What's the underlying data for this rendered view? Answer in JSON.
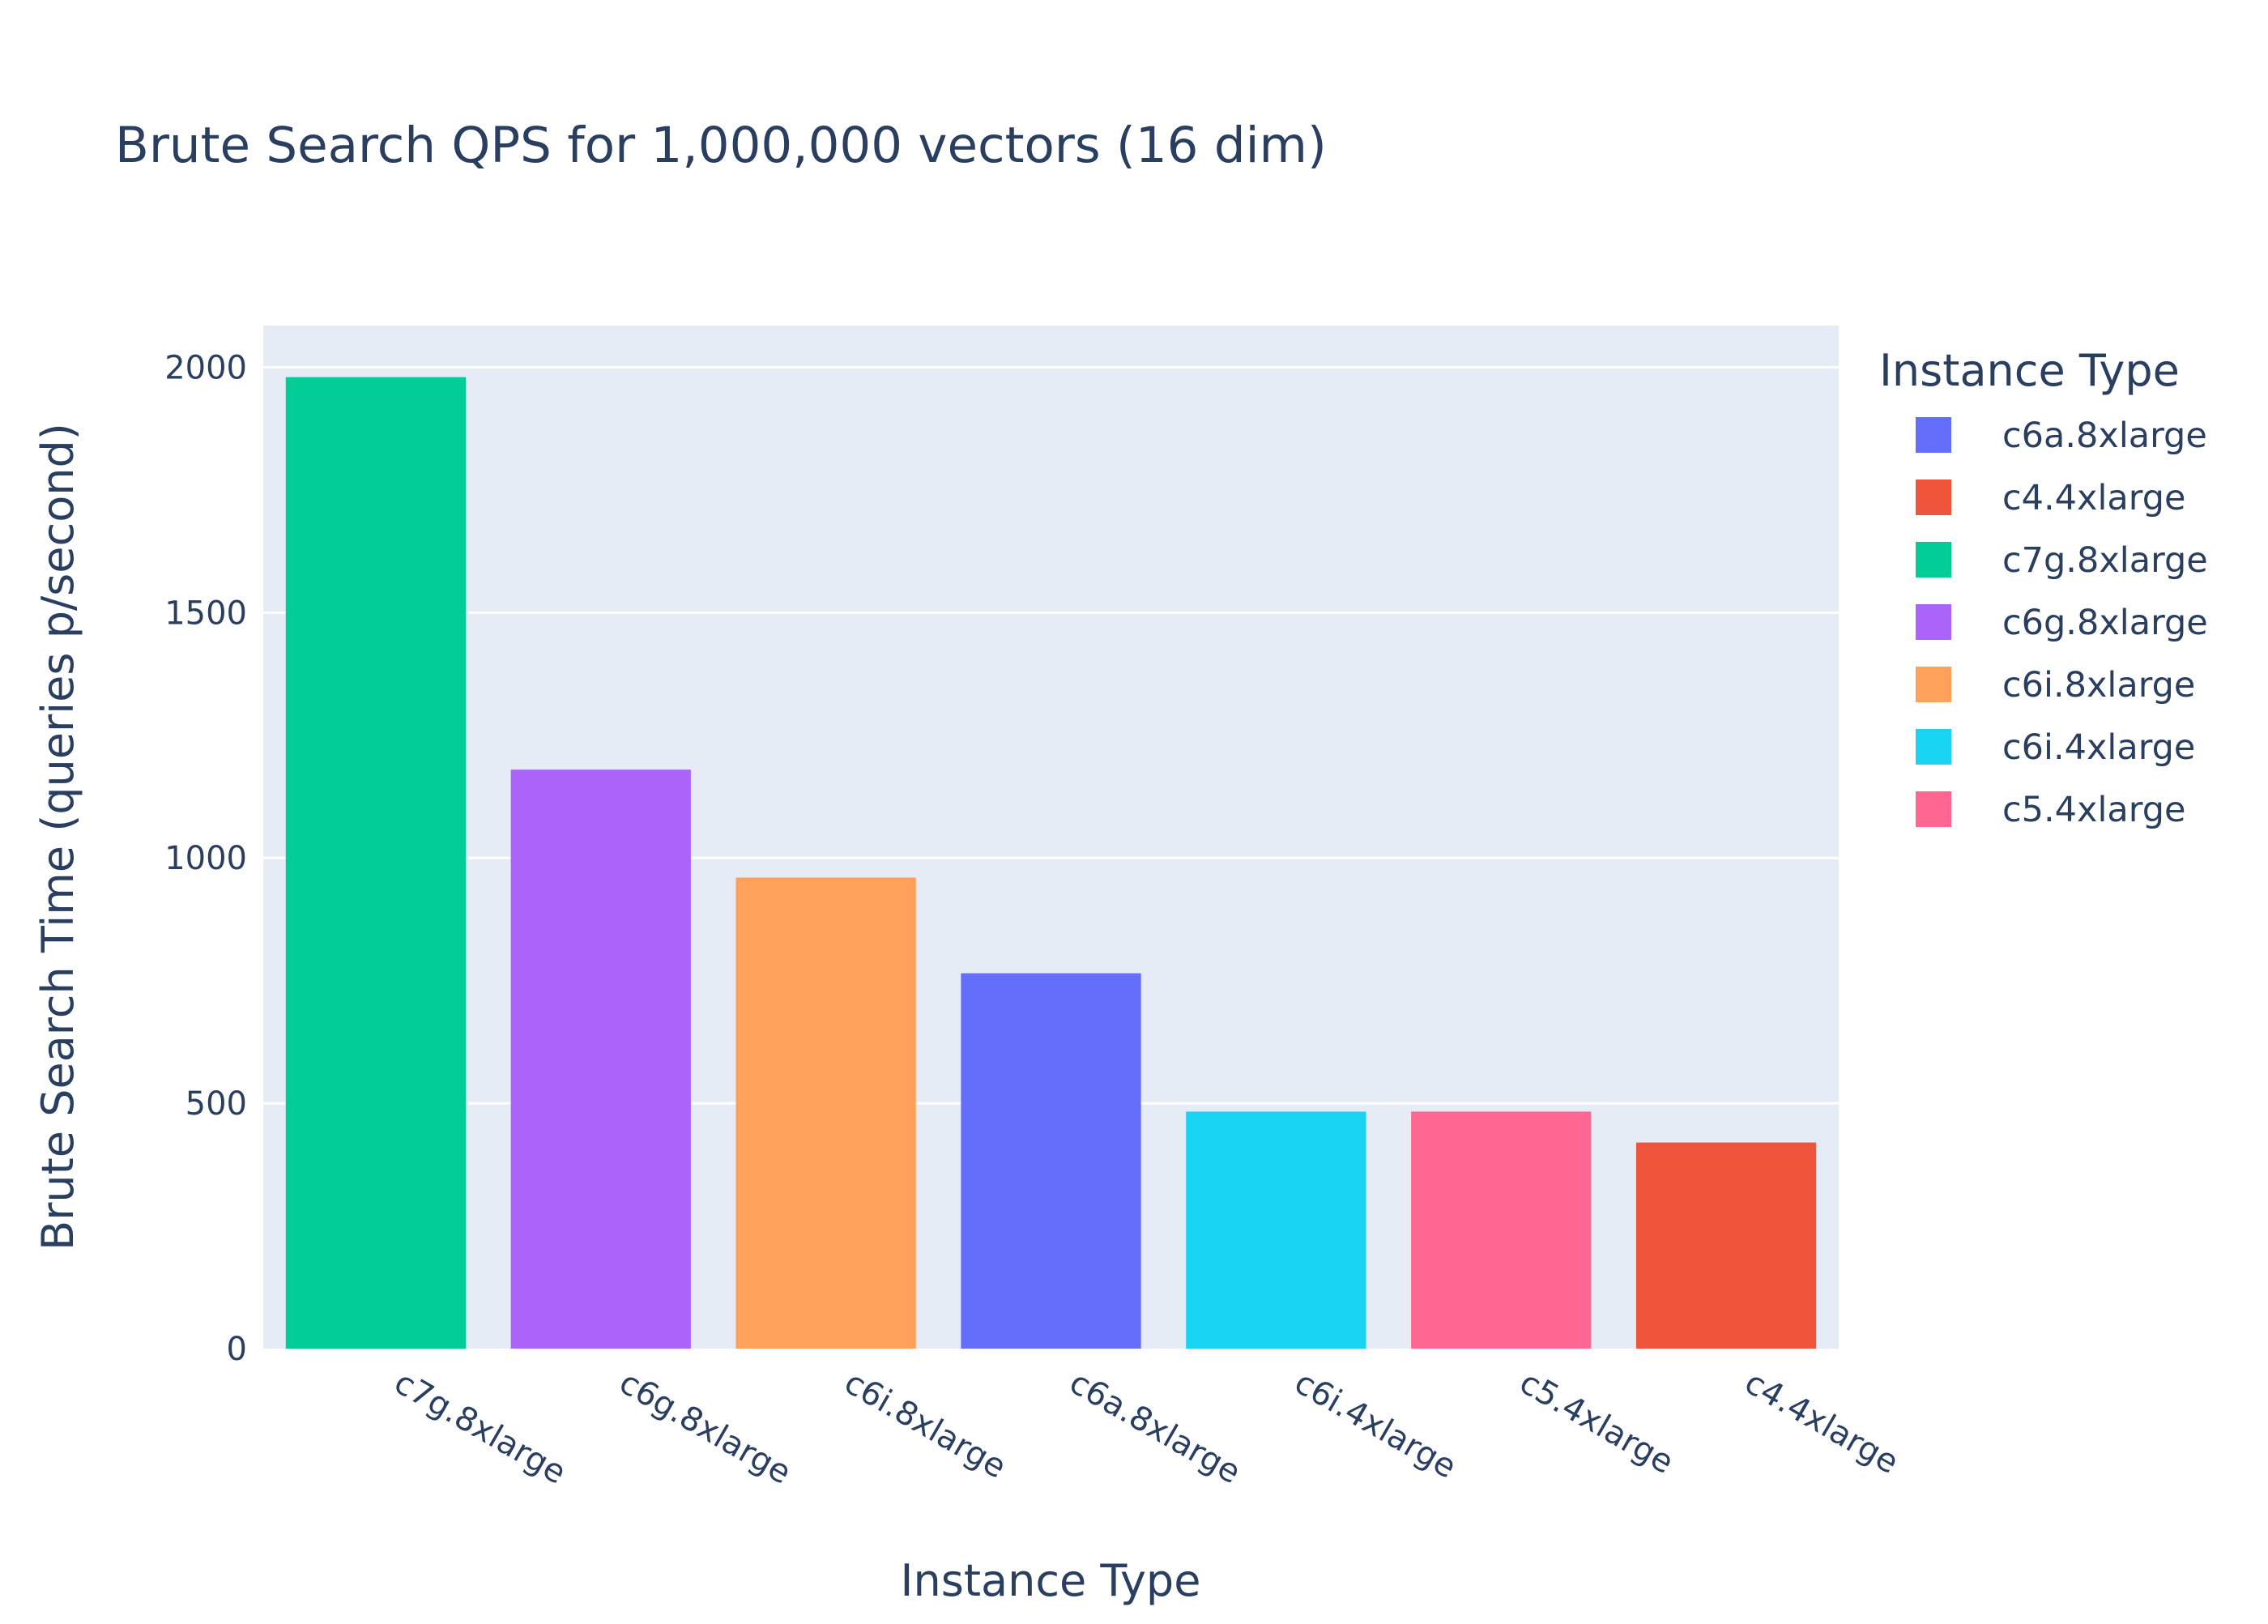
{
  "chart_data": {
    "type": "bar",
    "title": "Brute Search QPS for 1,000,000 vectors (16 dim)",
    "xlabel": "Instance Type",
    "ylabel": "Brute Search Time (queries p/second)",
    "categories": [
      "c7g.8xlarge",
      "c6g.8xlarge",
      "c6i.8xlarge",
      "c6a.8xlarge",
      "c6i.4xlarge",
      "c5.4xlarge",
      "c4.4xlarge"
    ],
    "values": [
      1980,
      1180,
      960,
      765,
      483,
      483,
      420
    ],
    "bar_colors": [
      "#00cc96",
      "#ab63fa",
      "#ffa15a",
      "#636efa",
      "#19d3f3",
      "#ff6692",
      "#ef553b"
    ],
    "ylim": [
      0,
      2085
    ],
    "yticks": [
      0,
      500,
      1000,
      1500,
      2000
    ],
    "ytick_labels": [
      "0",
      "500",
      "1000",
      "1500",
      "2000"
    ],
    "grid": true,
    "plot_background": "#e5ecf6",
    "legend": {
      "title": "Instance Type",
      "placement": "right",
      "items": [
        {
          "label": "c6a.8xlarge",
          "color": "#636efa"
        },
        {
          "label": "c4.4xlarge",
          "color": "#ef553b"
        },
        {
          "label": "c7g.8xlarge",
          "color": "#00cc96"
        },
        {
          "label": "c6g.8xlarge",
          "color": "#ab63fa"
        },
        {
          "label": "c6i.8xlarge",
          "color": "#ffa15a"
        },
        {
          "label": "c6i.4xlarge",
          "color": "#19d3f3"
        },
        {
          "label": "c5.4xlarge",
          "color": "#ff6692"
        }
      ]
    }
  }
}
